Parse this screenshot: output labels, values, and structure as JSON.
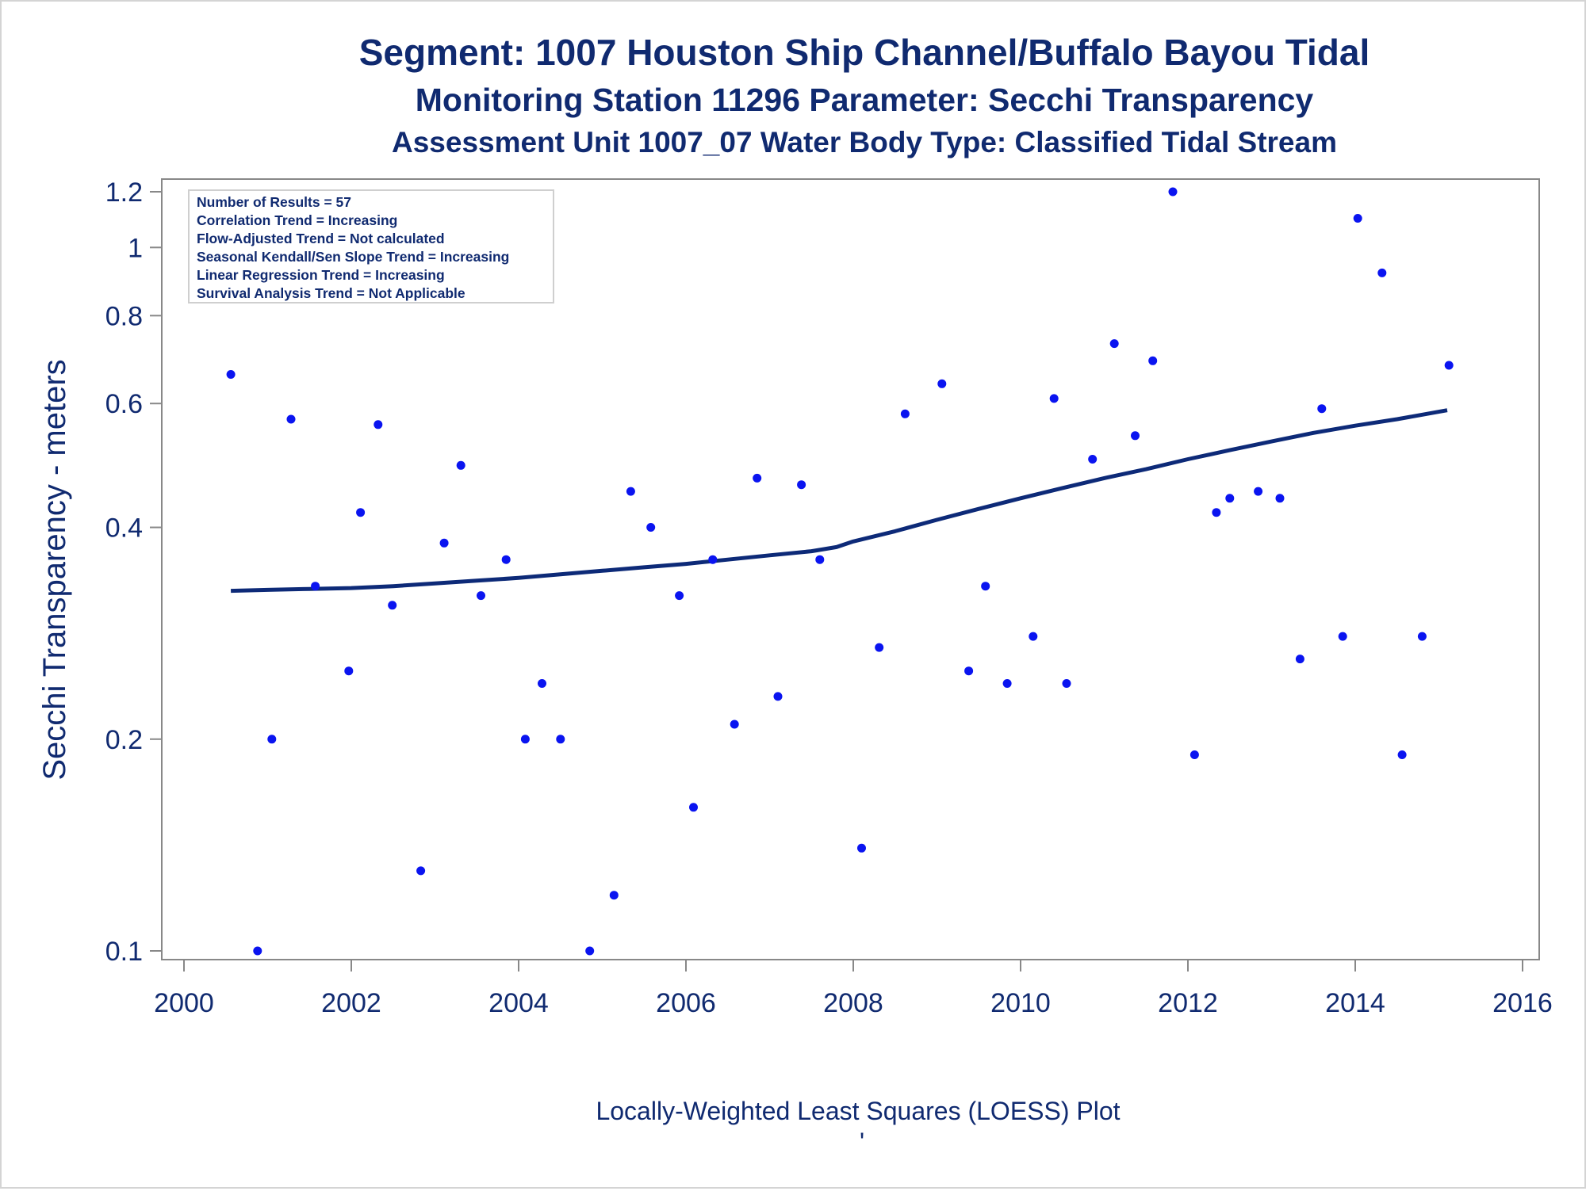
{
  "titles": {
    "line1": "Segment: 1007  Houston Ship Channel/Buffalo Bayou Tidal",
    "line2": "Monitoring Station 11296 Parameter: Secchi Transparency",
    "line3": "Assessment Unit 1007_07   Water Body Type: Classified Tidal Stream"
  },
  "footer": {
    "caption": "Locally-Weighted Least Squares (LOESS) Plot",
    "mark": "'"
  },
  "inset": {
    "lines": [
      "Number of Results = 57",
      "Correlation Trend = Increasing",
      "Flow-Adjusted Trend = Not calculated",
      "Seasonal Kendall/Sen Slope Trend = Increasing",
      "Linear Regression Trend = Increasing",
      "Survival Analysis Trend = Not Applicable"
    ]
  },
  "colors": {
    "text": "#102a70",
    "points": "#0a14f0",
    "loess": "#0d2a78",
    "axis": "#888888"
  },
  "chart_data": {
    "type": "scatter",
    "ylabel": "Secchi Transparency - meters",
    "xlabel": "",
    "x_axis": {
      "min": 2000,
      "max": 2016,
      "ticks": [
        2000,
        2002,
        2004,
        2006,
        2008,
        2010,
        2012,
        2014,
        2016
      ]
    },
    "y_axis": {
      "scale": "log",
      "min": 0.1,
      "max": 1.2,
      "ticks": [
        0.1,
        0.2,
        0.4,
        0.6,
        0.8,
        1,
        1.2
      ],
      "tick_labels": [
        "0.1",
        "0.2",
        "0.4",
        "0.6",
        "0.8",
        "1",
        "1.2"
      ]
    },
    "grid": false,
    "series": [
      {
        "kind": "points",
        "x": [
          2000.56,
          2000.88,
          2001.05,
          2001.28,
          2001.57,
          2001.97,
          2002.11,
          2002.32,
          2002.49,
          2002.83,
          2003.11,
          2003.31,
          2003.55,
          2003.85,
          2004.08,
          2004.28,
          2004.5,
          2004.85,
          2005.14,
          2005.34,
          2005.58,
          2005.92,
          2006.09,
          2006.32,
          2006.58,
          2006.85,
          2007.1,
          2007.38,
          2007.6,
          2008.1,
          2008.31,
          2008.62,
          2009.06,
          2009.38,
          2009.58,
          2009.84,
          2010.15,
          2010.4,
          2010.55,
          2010.86,
          2011.12,
          2011.37,
          2011.58,
          2011.82,
          2012.08,
          2012.34,
          2012.5,
          2012.84,
          2013.1,
          2013.34,
          2013.6,
          2013.85,
          2014.03,
          2014.32,
          2014.56,
          2014.8,
          2015.12
        ],
        "y": [
          0.66,
          0.1,
          0.2,
          0.57,
          0.33,
          0.25,
          0.42,
          0.56,
          0.31,
          0.13,
          0.38,
          0.49,
          0.32,
          0.36,
          0.2,
          0.24,
          0.2,
          0.1,
          0.12,
          0.45,
          0.4,
          0.32,
          0.16,
          0.36,
          0.21,
          0.47,
          0.23,
          0.46,
          0.36,
          0.14,
          0.27,
          0.58,
          0.64,
          0.25,
          0.33,
          0.24,
          0.28,
          0.61,
          0.24,
          0.5,
          0.73,
          0.54,
          0.69,
          1.2,
          0.19,
          0.42,
          0.44,
          0.45,
          0.44,
          0.26,
          0.59,
          0.28,
          1.1,
          0.92,
          0.19,
          0.28,
          0.68
        ]
      },
      {
        "kind": "loess-line",
        "x": [
          2000.56,
          2001.0,
          2001.5,
          2002.0,
          2002.5,
          2003.0,
          2003.5,
          2004.0,
          2004.5,
          2005.0,
          2005.5,
          2006.0,
          2006.5,
          2007.0,
          2007.5,
          2007.8,
          2008.0,
          2008.5,
          2009.0,
          2009.5,
          2010.0,
          2010.5,
          2011.0,
          2011.5,
          2012.0,
          2012.5,
          2013.0,
          2013.5,
          2014.0,
          2014.5,
          2015.1
        ],
        "y": [
          0.325,
          0.326,
          0.327,
          0.328,
          0.33,
          0.333,
          0.336,
          0.339,
          0.343,
          0.347,
          0.351,
          0.355,
          0.36,
          0.365,
          0.37,
          0.375,
          0.382,
          0.395,
          0.41,
          0.425,
          0.44,
          0.455,
          0.47,
          0.484,
          0.5,
          0.515,
          0.53,
          0.545,
          0.558,
          0.57,
          0.587
        ]
      }
    ]
  }
}
